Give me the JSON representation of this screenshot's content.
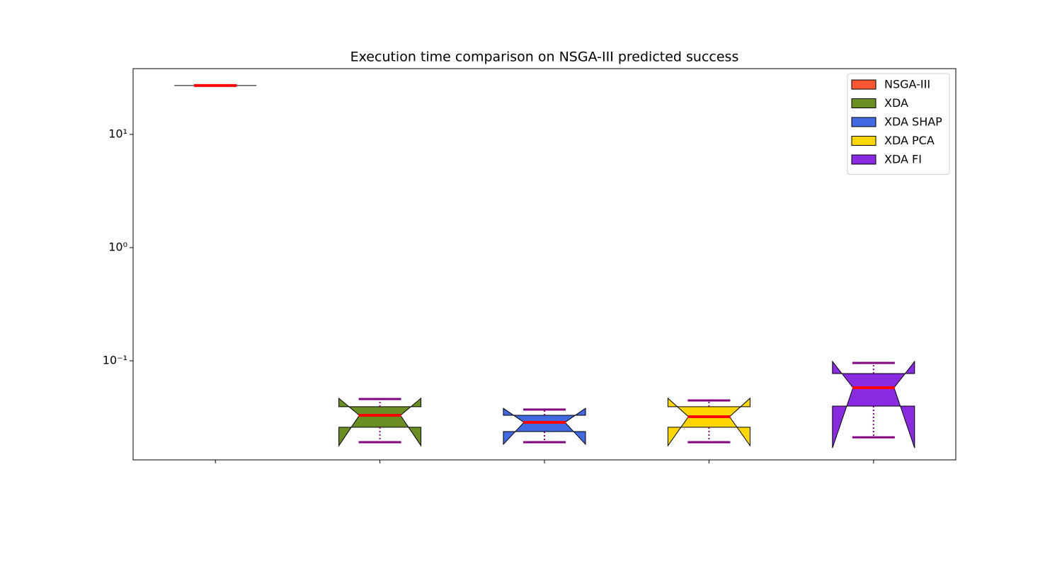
{
  "chart_data": {
    "type": "box",
    "title": "Execution time comparison on NSGA-III predicted success",
    "categories": [
      null,
      null,
      null,
      null,
      null
    ],
    "log_y": true,
    "ylim": [
      0.01334,
      38.1
    ],
    "yticks": [
      {
        "value": 0.1,
        "label": "10⁻¹"
      },
      {
        "value": 1,
        "label": "10⁰"
      },
      {
        "value": 10,
        "label": "10¹"
      }
    ],
    "legend": "upper right",
    "median_color": "#ff0000",
    "whisker_color": "#800080",
    "series": [
      {
        "name": "NSGA-III",
        "color": "#ff5733",
        "whislo": 27,
        "q1": 27,
        "med": 27,
        "q3": 27,
        "whishi": 27,
        "notch": [
          27,
          27
        ]
      },
      {
        "name": "XDA",
        "color": "#6b8e23",
        "whislo": 0.0191,
        "q1": 0.0259,
        "med": 0.033,
        "q3": 0.0393,
        "whishi": 0.046,
        "notch": [
          0.0178,
          0.0467
        ]
      },
      {
        "name": "XDA SHAP",
        "color": "#4169e1",
        "whislo": 0.0191,
        "q1": 0.0237,
        "med": 0.0286,
        "q3": 0.033,
        "whishi": 0.0371,
        "notch": [
          0.0183,
          0.0381
        ]
      },
      {
        "name": "XDA PCA",
        "color": "#ffd700",
        "whislo": 0.0191,
        "q1": 0.0259,
        "med": 0.0321,
        "q3": 0.0393,
        "whishi": 0.0447,
        "notch": [
          0.0178,
          0.0467
        ]
      },
      {
        "name": "XDA FI",
        "color": "#8a2be2",
        "whislo": 0.0211,
        "q1": 0.0398,
        "med": 0.0579,
        "q3": 0.0772,
        "whishi": 0.0958,
        "notch": [
          0.017,
          0.0986
        ]
      }
    ]
  }
}
